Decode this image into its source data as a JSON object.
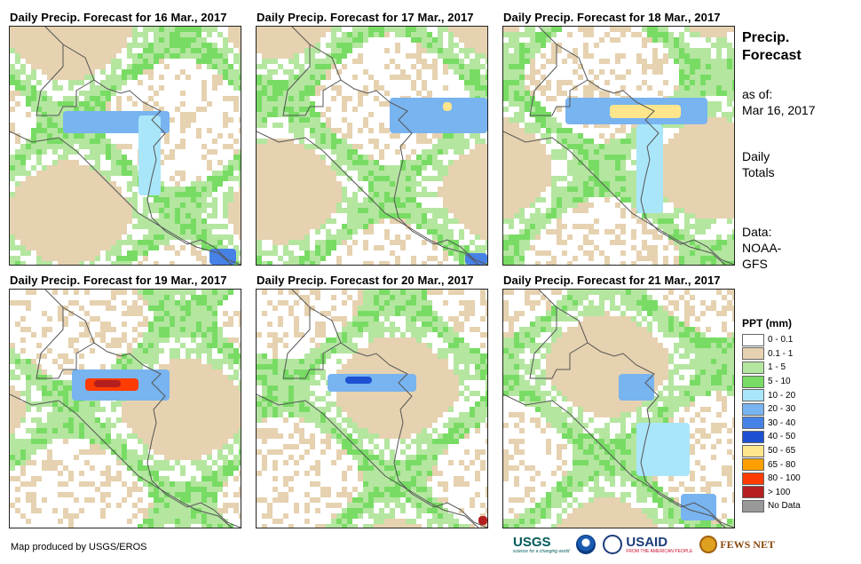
{
  "panels": [
    {
      "title": "Daily Precip. Forecast for 16 Mar., 2017"
    },
    {
      "title": "Daily Precip. Forecast for 17 Mar., 2017"
    },
    {
      "title": "Daily Precip. Forecast for 18 Mar., 2017"
    },
    {
      "title": "Daily Precip. Forecast for 19 Mar., 2017"
    },
    {
      "title": "Daily Precip. Forecast for 20 Mar., 2017"
    },
    {
      "title": "Daily Precip. Forecast for 21 Mar., 2017"
    }
  ],
  "side": {
    "title_line1": "Precip.",
    "title_line2": "Forecast",
    "asof_line1": "as of:",
    "asof_line2": "Mar 16, 2017",
    "totals_line1": "Daily",
    "totals_line2": "Totals",
    "data_line1": "Data:",
    "data_line2": "NOAA-",
    "data_line3": "GFS"
  },
  "legend": {
    "title": "PPT (mm)",
    "items": [
      {
        "label": "0 - 0.1",
        "color": "#ffffff"
      },
      {
        "label": "0.1 - 1",
        "color": "#e6d2b0"
      },
      {
        "label": "1 - 5",
        "color": "#b4e6a0"
      },
      {
        "label": "5 - 10",
        "color": "#78dc64"
      },
      {
        "label": "10 - 20",
        "color": "#aae6fa"
      },
      {
        "label": "20 - 30",
        "color": "#78b4f0"
      },
      {
        "label": "30 - 40",
        "color": "#4682e6"
      },
      {
        "label": "40 - 50",
        "color": "#1e50d2"
      },
      {
        "label": "50 - 65",
        "color": "#ffe68c"
      },
      {
        "label": "65 - 80",
        "color": "#ffa000"
      },
      {
        "label": "80 - 100",
        "color": "#ff3c00"
      },
      {
        "label": "> 100",
        "color": "#b41e1e"
      },
      {
        "label": "No Data",
        "color": "#999999"
      }
    ]
  },
  "footer": {
    "credit": "Map produced by USGS/EROS"
  },
  "logos": {
    "usgs": "USGS",
    "usgs_tagline": "science for a changing world",
    "usaid": "USAID",
    "usaid_tagline": "FROM THE AMERICAN PEOPLE",
    "fews": "FEWS NET"
  }
}
